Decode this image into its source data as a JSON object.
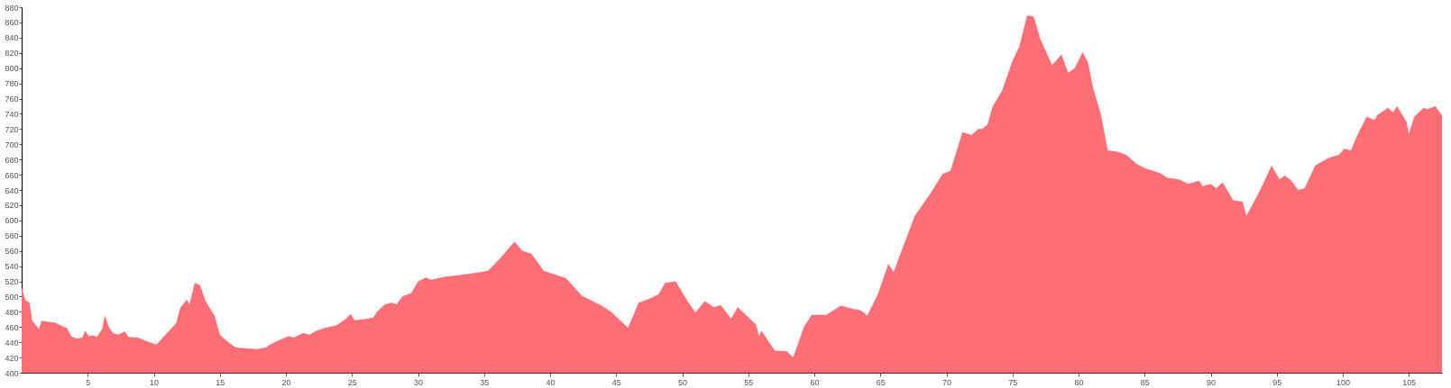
{
  "chart_data": {
    "type": "area",
    "color": "#fe6e76",
    "x": [
      0,
      0.3,
      0.6,
      0.8,
      1.2,
      1.3,
      1.5,
      2.5,
      3.2,
      3.4,
      3.8,
      4.2,
      4.6,
      4.8,
      5.1,
      5.4,
      5.7,
      6.1,
      6.3,
      6.6,
      6.9,
      7.3,
      7.8,
      8.1,
      8.8,
      9.5,
      10.2,
      11.0,
      11.7,
      12.0,
      12.5,
      12.7,
      13.1,
      13.5,
      13.9,
      14.3,
      14.6,
      15.0,
      15.5,
      16.2,
      17,
      17.8,
      18.5,
      18.8,
      19.5,
      20.2,
      20.6,
      21.3,
      21.8,
      22.3,
      23,
      23.8,
      24.5,
      24.9,
      25.2,
      25.8,
      26.6,
      26.9,
      27.5,
      28,
      28.4,
      28.8,
      29.5,
      30,
      30.6,
      31,
      32,
      33,
      34.3,
      35.3,
      36.2,
      37.3,
      37.9,
      38.6,
      39.5,
      41.2,
      42.4,
      43.9,
      44.6,
      45.9,
      46.7,
      47.5,
      48.2,
      48.7,
      49.5,
      50.4,
      51.0,
      51.7,
      52.4,
      52.9,
      53.7,
      54.2,
      55.6,
      55.8,
      56.0,
      57.0,
      57.9,
      58.4,
      59.2,
      59.8,
      60.9,
      62.0,
      62.9,
      63.5,
      64.0,
      64.8,
      65.6,
      66.0,
      66.4,
      67.6,
      68.8,
      69.7,
      70.3,
      71.2,
      71.9,
      72.4,
      72.7,
      73.1,
      73.5,
      74.2,
      75.0,
      75.5,
      76.1,
      76.6,
      77.1,
      78.0,
      78.7,
      79.2,
      79.7,
      80.3,
      80.7,
      81.1,
      81.7,
      82.2,
      83.0,
      83.6,
      84.4,
      85.1,
      86.2,
      86.7,
      87.6,
      88.3,
      89.1,
      89.4,
      90.0,
      90.4,
      90.9,
      91.7,
      92.4,
      92.7,
      93.8,
      94.6,
      95.2,
      95.6,
      96.1,
      96.6,
      97.1,
      97.9,
      98.9,
      99.7,
      100.1,
      100.6,
      101.1,
      101.8,
      102.4,
      102.6,
      103.4,
      103.8,
      104.1,
      104.8,
      105.0,
      105.4,
      106.1,
      106.4,
      107.0,
      107.5
    ],
    "values": [
      512,
      495,
      492,
      468,
      460,
      457,
      468,
      466,
      460,
      459,
      447,
      445,
      446,
      455,
      448,
      449,
      447,
      458,
      475,
      460,
      452,
      450,
      454,
      447,
      446,
      441,
      437,
      452,
      465,
      485,
      496,
      490,
      518,
      515,
      495,
      483,
      475,
      450,
      442,
      433,
      432,
      431,
      433,
      437,
      443,
      448,
      446,
      452,
      450,
      455,
      459,
      462,
      470,
      477,
      469,
      470,
      472,
      480,
      490,
      492,
      490,
      500,
      505,
      520,
      525,
      522,
      526,
      528,
      531,
      534,
      550,
      572,
      560,
      556,
      534,
      524,
      501,
      488,
      480,
      459,
      492,
      497,
      503,
      518,
      520,
      494,
      479,
      494,
      486,
      489,
      471,
      486,
      463,
      448,
      455,
      429,
      428,
      420,
      460,
      476,
      476,
      488,
      484,
      482,
      475,
      503,
      543,
      532,
      551,
      606,
      636,
      661,
      665,
      716,
      712,
      720,
      720,
      726,
      750,
      770,
      810,
      828,
      869,
      868,
      838,
      804,
      818,
      794,
      800,
      821,
      808,
      774,
      738,
      692,
      690,
      686,
      674,
      668,
      662,
      656,
      654,
      648,
      652,
      645,
      648,
      642,
      650,
      626,
      625,
      606,
      642,
      672,
      654,
      659,
      652,
      640,
      642,
      672,
      682,
      686,
      694,
      692,
      712,
      736,
      732,
      738,
      748,
      742,
      750,
      730,
      714,
      736,
      748,
      746,
      750,
      738
    ],
    "xlim": [
      0,
      107.5
    ],
    "xticks": [
      5,
      10,
      15,
      20,
      25,
      30,
      35,
      40,
      45,
      50,
      55,
      60,
      65,
      70,
      75,
      80,
      85,
      90,
      95,
      100,
      105
    ],
    "ylim": [
      400,
      880
    ],
    "yticks": [
      400,
      420,
      440,
      460,
      480,
      500,
      520,
      540,
      560,
      580,
      600,
      620,
      640,
      660,
      680,
      700,
      720,
      740,
      760,
      780,
      800,
      820,
      840,
      860,
      880
    ],
    "grid": false
  }
}
